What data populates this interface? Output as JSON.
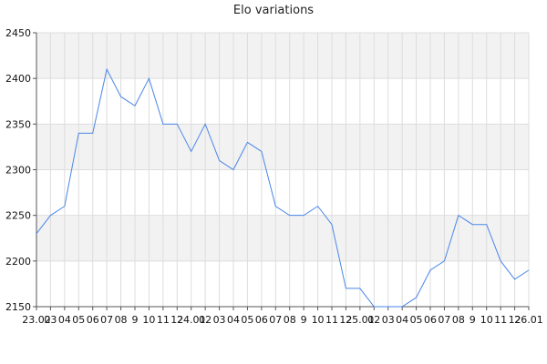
{
  "chart_data": {
    "type": "line",
    "title": "Elo variations",
    "xlabel": "",
    "ylabel": "",
    "ylim": [
      2150,
      2450
    ],
    "yticks": [
      2150,
      2200,
      2250,
      2300,
      2350,
      2400,
      2450
    ],
    "grid": true,
    "x_tick_labels": [
      "23.02",
      "03",
      "04",
      "05",
      "06",
      "07",
      "08",
      "9",
      "10",
      "11",
      "12",
      "24.01",
      "02",
      "03",
      "04",
      "05",
      "06",
      "07",
      "08",
      "9",
      "10",
      "11",
      "12",
      "25.01",
      "02",
      "03",
      "04",
      "05",
      "06",
      "07",
      "08",
      "9",
      "10",
      "11",
      "12",
      "26.01"
    ],
    "series": [
      {
        "color": "#4a86e8",
        "values": [
          2230,
          2250,
          2260,
          2340,
          2340,
          2410,
          2380,
          2370,
          2400,
          2350,
          2350,
          2320,
          2350,
          2310,
          2300,
          2330,
          2320,
          2260,
          2250,
          2250,
          2260,
          2240,
          2170,
          2170,
          2150,
          2150,
          2150,
          2160,
          2190,
          2200,
          2250,
          2240,
          2240,
          2200,
          2180,
          2190
        ]
      }
    ]
  }
}
